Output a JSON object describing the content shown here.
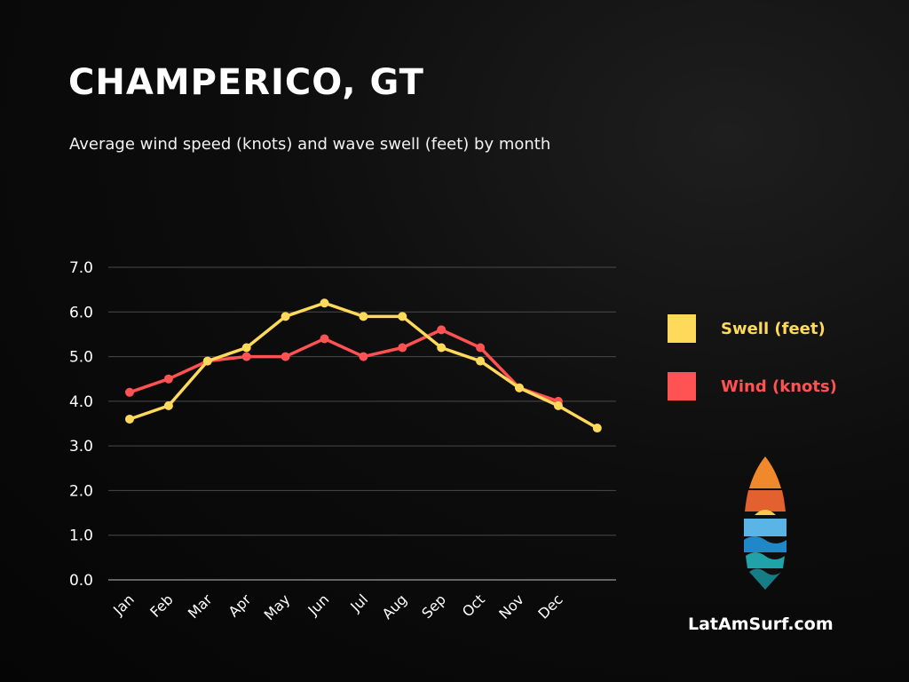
{
  "header": {
    "title": "CHAMPERICO, GT",
    "subtitle": "Average wind speed (knots) and wave swell (feet) by month"
  },
  "chart_data": {
    "type": "line",
    "categories": [
      "Jan",
      "Feb",
      "Mar",
      "Apr",
      "May",
      "Jun",
      "Jul",
      "Aug",
      "Sep",
      "Oct",
      "Nov",
      "Dec",
      ""
    ],
    "series": [
      {
        "name": "Swell (feet)",
        "color": "#FFD95A",
        "values": [
          3.6,
          3.9,
          4.9,
          5.2,
          5.9,
          6.2,
          5.9,
          5.9,
          5.2,
          4.9,
          4.3,
          3.9,
          3.4
        ]
      },
      {
        "name": "Wind (knots)",
        "color": "#FF5252",
        "values": [
          4.2,
          4.5,
          4.9,
          5.0,
          5.0,
          5.4,
          5.0,
          5.2,
          5.6,
          5.2,
          4.3,
          4.0,
          null
        ]
      }
    ],
    "yticks": [
      "0.0",
      "1.0",
      "2.0",
      "3.0",
      "4.0",
      "5.0",
      "6.0",
      "7.0"
    ],
    "ylim": [
      0,
      7
    ],
    "grid": true,
    "legend_position": "right"
  },
  "footer": {
    "site": "LatAmSurf.com",
    "logo_icon": "surfboard-logo-icon"
  }
}
